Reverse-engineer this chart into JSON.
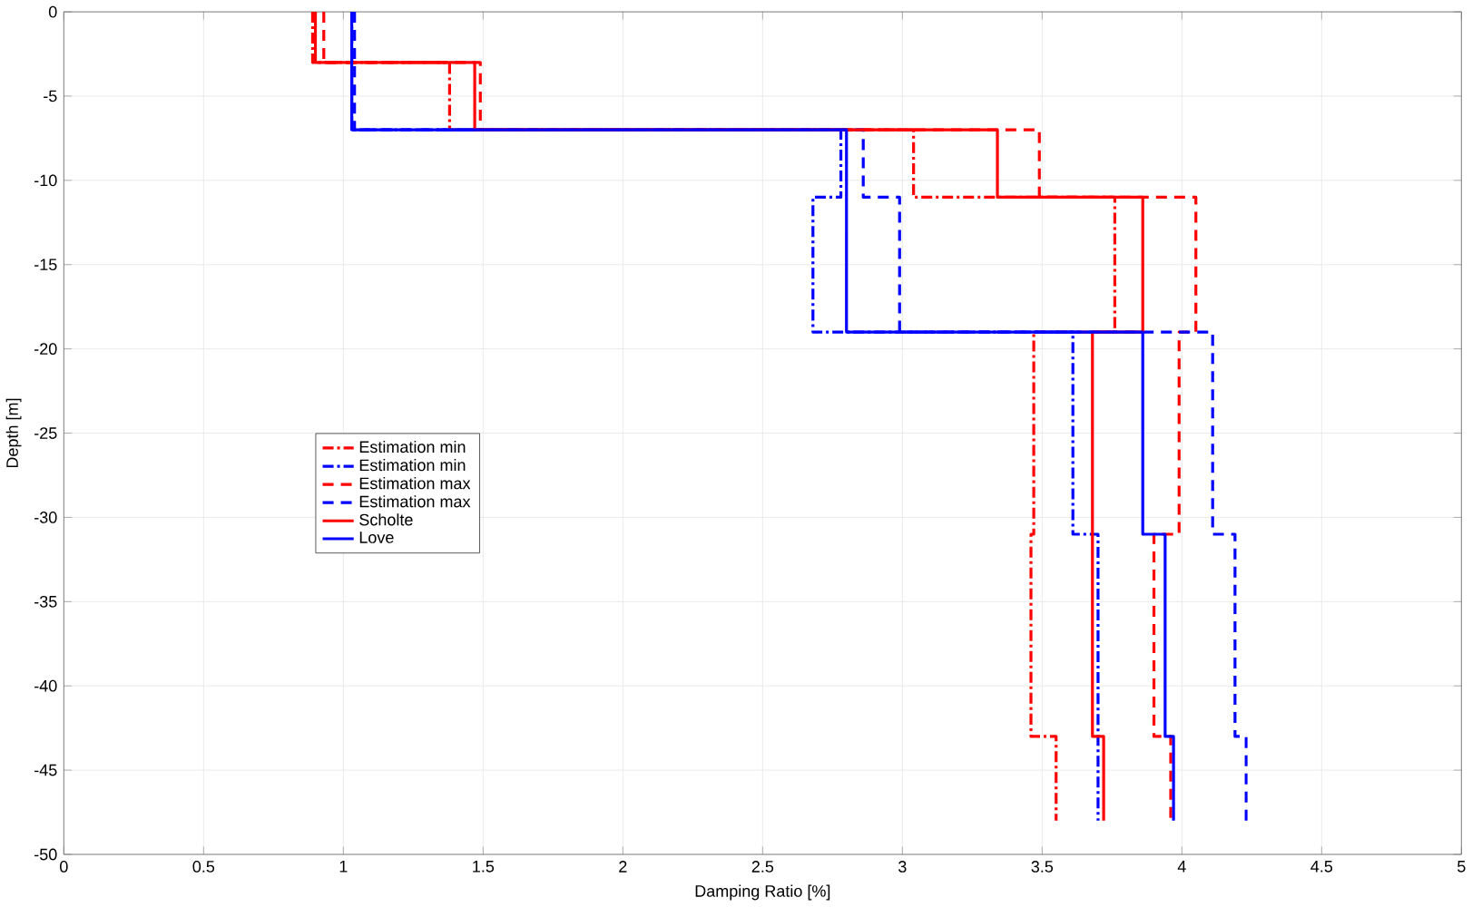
{
  "chart_data": {
    "type": "line",
    "xlabel": "Damping Ratio [%]",
    "ylabel": "Depth [m]",
    "xlim": [
      0,
      5
    ],
    "xticks": [
      0,
      0.5,
      1,
      1.5,
      2,
      2.5,
      3,
      3.5,
      4,
      4.5,
      5
    ],
    "ylim": [
      -50,
      0
    ],
    "yticks": [
      -50,
      -45,
      -40,
      -35,
      -30,
      -25,
      -20,
      -15,
      -10,
      -5,
      0
    ],
    "grid": true,
    "legend": "left",
    "marker": "none",
    "series": [
      {
        "name": "Estimation min",
        "color": "#ff0000",
        "line_style": "dashdot",
        "x": [
          0.89,
          0.89,
          1.38,
          1.38,
          3.04,
          3.04,
          3.76,
          3.76,
          3.47,
          3.47,
          3.46,
          3.46,
          3.55,
          3.55
        ],
        "values": [
          0,
          -3,
          -3,
          -7,
          -7,
          -11,
          -11,
          -19,
          -19,
          -31,
          -31,
          -43,
          -43,
          -48
        ]
      },
      {
        "name": "Estimation min",
        "color": "#0000ff",
        "line_style": "dashdot",
        "x": [
          1.03,
          1.03,
          2.78,
          2.78,
          2.68,
          2.68,
          3.61,
          3.61,
          3.7,
          3.7
        ],
        "values": [
          0,
          -7,
          -7,
          -11,
          -11,
          -19,
          -19,
          -31,
          -31,
          -48
        ]
      },
      {
        "name": "Estimation max",
        "color": "#ff0000",
        "line_style": "dashed",
        "x": [
          0.93,
          0.93,
          1.49,
          1.49,
          3.49,
          3.49,
          4.05,
          4.05,
          3.99,
          3.99,
          3.9,
          3.9,
          3.96,
          3.96
        ],
        "values": [
          0,
          -3,
          -3,
          -7,
          -7,
          -11,
          -11,
          -19,
          -19,
          -31,
          -31,
          -43,
          -43,
          -48
        ]
      },
      {
        "name": "Estimation max",
        "color": "#0000ff",
        "line_style": "dashed",
        "x": [
          1.04,
          1.04,
          2.86,
          2.86,
          2.99,
          2.99,
          4.11,
          4.11,
          4.19,
          4.19,
          4.23,
          4.23
        ],
        "values": [
          0,
          -7,
          -7,
          -11,
          -11,
          -19,
          -19,
          -31,
          -31,
          -43,
          -43,
          -48
        ]
      },
      {
        "name": "Scholte",
        "color": "#ff0000",
        "line_style": "solid",
        "x": [
          0.9,
          0.9,
          1.47,
          1.47,
          3.34,
          3.34,
          3.86,
          3.86,
          3.68,
          3.68,
          3.72,
          3.72
        ],
        "values": [
          0,
          -3,
          -3,
          -7,
          -7,
          -11,
          -11,
          -19,
          -19,
          -43,
          -43,
          -48
        ]
      },
      {
        "name": "Love",
        "color": "#0000ff",
        "line_style": "solid",
        "x": [
          1.03,
          1.03,
          2.8,
          2.8,
          3.86,
          3.86,
          3.94,
          3.94,
          3.97,
          3.97
        ],
        "values": [
          0,
          -7,
          -7,
          -19,
          -19,
          -31,
          -31,
          -43,
          -43,
          -48
        ]
      }
    ]
  }
}
